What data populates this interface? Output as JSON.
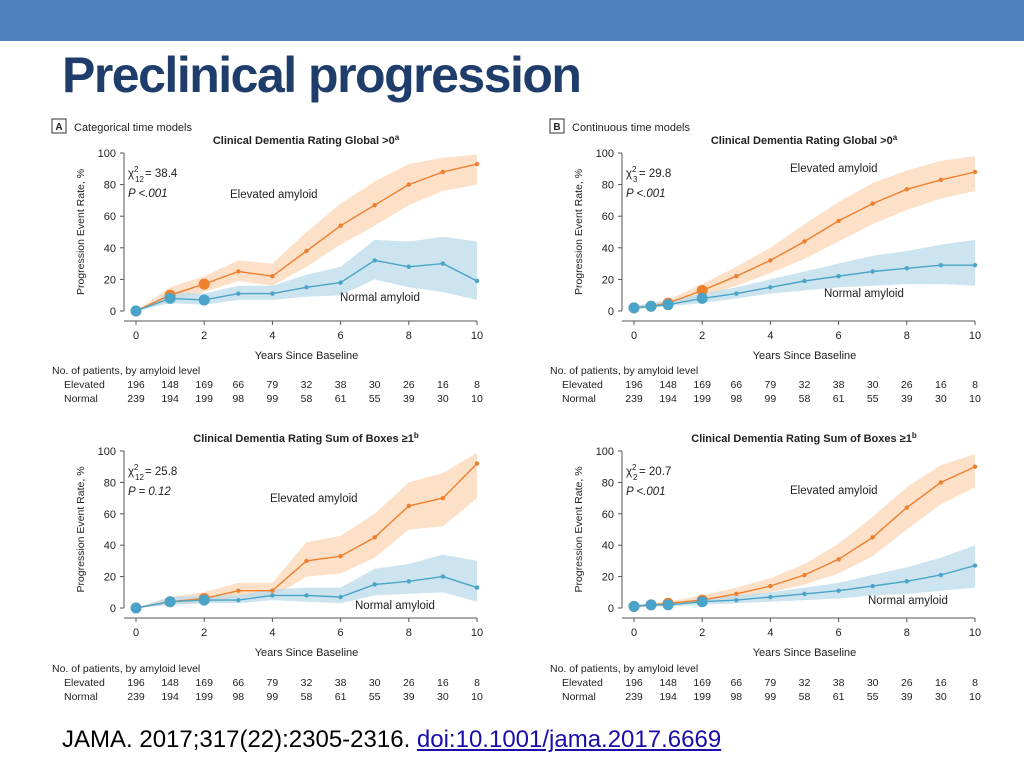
{
  "slide": {
    "title": "Preclinical progression",
    "citation_text": "JAMA. 2017;317(22):2305-2316.",
    "citation_link": "doi:10.1001/jama.2017.6669"
  },
  "colors": {
    "header_bar": "#4f81bd",
    "title": "#1f3d6b",
    "elevated": "#ee7f2d",
    "elevated_band": "#fbd5b5",
    "normal": "#4aa3c8",
    "normal_band": "#b9dbea",
    "axis_text": "#222222"
  },
  "panels": [
    {
      "id": "A",
      "label": "Categorical time models"
    },
    {
      "id": "B",
      "label": "Continuous time models"
    }
  ],
  "chart_data": [
    {
      "type": "line",
      "panel": "A",
      "title": "Clinical Dementia Rating Global >0",
      "title_sup": "a",
      "xlabel": "Years Since Baseline",
      "ylabel": "Progression Event Rate, %",
      "xlim": [
        0,
        10
      ],
      "ylim": [
        0,
        100
      ],
      "xticks": [
        0,
        2,
        4,
        6,
        8,
        10
      ],
      "yticks": [
        0,
        20,
        40,
        60,
        80,
        100
      ],
      "stat_chi": "χ",
      "stat_df": "12",
      "stat_value": "= 38.4",
      "stat_p": "P <.001",
      "series": [
        {
          "name": "Elevated amyloid",
          "x": [
            0,
            1,
            2,
            3,
            4,
            5,
            6,
            7,
            8,
            9,
            10
          ],
          "y": [
            0,
            10,
            17,
            25,
            22,
            38,
            54,
            67,
            80,
            88,
            93
          ],
          "lower": [
            0,
            6,
            12,
            19,
            16,
            28,
            42,
            54,
            67,
            76,
            80
          ],
          "upper": [
            0,
            15,
            22,
            32,
            30,
            50,
            68,
            82,
            93,
            97,
            99
          ]
        },
        {
          "name": "Normal amyloid",
          "x": [
            0,
            1,
            2,
            3,
            4,
            5,
            6,
            7,
            8,
            9,
            10
          ],
          "y": [
            0,
            8,
            7,
            11,
            11,
            15,
            18,
            32,
            28,
            30,
            19
          ],
          "lower": [
            0,
            5,
            4,
            7,
            7,
            9,
            10,
            20,
            15,
            12,
            7
          ],
          "upper": [
            0,
            12,
            11,
            16,
            16,
            23,
            28,
            45,
            44,
            47,
            44
          ]
        }
      ],
      "counts_header": "No. of patients, by amyloid level",
      "counts": [
        {
          "label": "Elevated",
          "values": [
            196,
            148,
            169,
            66,
            79,
            32,
            38,
            30,
            26,
            16,
            8
          ]
        },
        {
          "label": "Normal",
          "values": [
            239,
            194,
            199,
            98,
            99,
            58,
            61,
            55,
            39,
            30,
            10
          ]
        }
      ]
    },
    {
      "type": "line",
      "panel": "B",
      "title": "Clinical Dementia Rating Global >0",
      "title_sup": "a",
      "xlabel": "Years Since Baseline",
      "ylabel": "Progression Event Rate, %",
      "xlim": [
        0,
        10
      ],
      "ylim": [
        0,
        100
      ],
      "xticks": [
        0,
        2,
        4,
        6,
        8,
        10
      ],
      "yticks": [
        0,
        20,
        40,
        60,
        80,
        100
      ],
      "stat_chi": "χ",
      "stat_df": "3",
      "stat_value": "= 29.8",
      "stat_p": "P <.001",
      "series": [
        {
          "name": "Elevated amyloid",
          "x": [
            0,
            0.5,
            1,
            2,
            3,
            4,
            5,
            6,
            7,
            8,
            9,
            10
          ],
          "y": [
            2,
            3,
            5,
            13,
            22,
            32,
            44,
            57,
            68,
            77,
            83,
            88
          ],
          "lower": [
            1,
            2,
            3,
            9,
            16,
            24,
            33,
            44,
            55,
            64,
            71,
            76
          ],
          "upper": [
            3,
            5,
            7,
            17,
            28,
            40,
            55,
            69,
            81,
            89,
            95,
            98
          ]
        },
        {
          "name": "Normal amyloid",
          "x": [
            0,
            0.5,
            1,
            2,
            3,
            4,
            5,
            6,
            7,
            8,
            9,
            10
          ],
          "y": [
            2,
            3,
            4,
            8,
            11,
            15,
            19,
            22,
            25,
            27,
            29,
            29
          ],
          "lower": [
            1,
            2,
            3,
            5,
            8,
            11,
            13,
            15,
            16,
            17,
            17,
            16
          ],
          "upper": [
            3,
            5,
            6,
            11,
            15,
            20,
            25,
            30,
            35,
            38,
            42,
            45
          ]
        }
      ],
      "counts_header": "No. of patients, by amyloid level",
      "counts": [
        {
          "label": "Elevated",
          "values": [
            196,
            148,
            169,
            66,
            79,
            32,
            38,
            30,
            26,
            16,
            8
          ]
        },
        {
          "label": "Normal",
          "values": [
            239,
            194,
            199,
            98,
            99,
            58,
            61,
            55,
            39,
            30,
            10
          ]
        }
      ]
    },
    {
      "type": "line",
      "panel": "",
      "title": "Clinical Dementia Rating Sum of Boxes ≥1",
      "title_sup": "b",
      "xlabel": "Years Since Baseline",
      "ylabel": "Progression Event Rate, %",
      "xlim": [
        0,
        10
      ],
      "ylim": [
        0,
        100
      ],
      "xticks": [
        0,
        2,
        4,
        6,
        8,
        10
      ],
      "yticks": [
        0,
        20,
        40,
        60,
        80,
        100
      ],
      "stat_chi": "χ",
      "stat_df": "12",
      "stat_value": "= 25.8",
      "stat_p": "P = 0.12",
      "series": [
        {
          "name": "Elevated amyloid",
          "x": [
            0,
            1,
            2,
            3,
            4,
            5,
            6,
            7,
            8,
            9,
            10
          ],
          "y": [
            0,
            4,
            6,
            11,
            11,
            30,
            33,
            45,
            65,
            70,
            92
          ],
          "lower": [
            0,
            2,
            3,
            7,
            7,
            20,
            22,
            32,
            50,
            52,
            70
          ],
          "upper": [
            0,
            7,
            10,
            16,
            16,
            42,
            46,
            60,
            80,
            86,
            99
          ]
        },
        {
          "name": "Normal amyloid",
          "x": [
            0,
            1,
            2,
            3,
            4,
            5,
            6,
            7,
            8,
            9,
            10
          ],
          "y": [
            0,
            4,
            5,
            5,
            8,
            8,
            7,
            15,
            17,
            20,
            13
          ],
          "lower": [
            0,
            2,
            3,
            3,
            5,
            4,
            3,
            8,
            9,
            10,
            4
          ],
          "upper": [
            0,
            7,
            8,
            8,
            12,
            13,
            13,
            25,
            28,
            34,
            30
          ]
        }
      ],
      "counts_header": "No. of patients, by amyloid level",
      "counts": [
        {
          "label": "Elevated",
          "values": [
            196,
            148,
            169,
            66,
            79,
            32,
            38,
            30,
            26,
            16,
            8
          ]
        },
        {
          "label": "Normal",
          "values": [
            239,
            194,
            199,
            98,
            99,
            58,
            61,
            55,
            39,
            30,
            10
          ]
        }
      ]
    },
    {
      "type": "line",
      "panel": "",
      "title": "Clinical Dementia Rating Sum of Boxes ≥1",
      "title_sup": "b",
      "xlabel": "Years Since Baseline",
      "ylabel": "Progression Event Rate, %",
      "xlim": [
        0,
        10
      ],
      "ylim": [
        0,
        100
      ],
      "xticks": [
        0,
        2,
        4,
        6,
        8,
        10
      ],
      "yticks": [
        0,
        20,
        40,
        60,
        80,
        100
      ],
      "stat_chi": "χ",
      "stat_df": "2",
      "stat_value": "= 20.7",
      "stat_p": "P <.001",
      "series": [
        {
          "name": "Elevated amyloid",
          "x": [
            0,
            0.5,
            1,
            2,
            3,
            4,
            5,
            6,
            7,
            8,
            9,
            10
          ],
          "y": [
            1,
            2,
            3,
            5,
            9,
            14,
            21,
            31,
            45,
            64,
            80,
            90
          ],
          "lower": [
            0,
            1,
            2,
            3,
            6,
            10,
            15,
            22,
            33,
            50,
            66,
            77
          ],
          "upper": [
            2,
            3,
            4,
            8,
            13,
            19,
            28,
            41,
            58,
            77,
            91,
            98
          ]
        },
        {
          "name": "Normal amyloid",
          "x": [
            0,
            0.5,
            1,
            2,
            3,
            4,
            5,
            6,
            7,
            8,
            9,
            10
          ],
          "y": [
            1,
            2,
            2,
            4,
            5,
            7,
            9,
            11,
            14,
            17,
            21,
            27
          ],
          "lower": [
            0,
            1,
            1,
            2,
            3,
            4,
            5,
            6,
            8,
            9,
            11,
            13
          ],
          "upper": [
            2,
            3,
            3,
            6,
            8,
            10,
            13,
            16,
            21,
            26,
            32,
            40
          ]
        }
      ],
      "counts_header": "No. of patients, by amyloid level",
      "counts": [
        {
          "label": "Elevated",
          "values": [
            196,
            148,
            169,
            66,
            79,
            32,
            38,
            30,
            26,
            16,
            8
          ]
        },
        {
          "label": "Normal",
          "values": [
            239,
            194,
            199,
            98,
            99,
            58,
            61,
            55,
            39,
            30,
            10
          ]
        }
      ]
    }
  ]
}
